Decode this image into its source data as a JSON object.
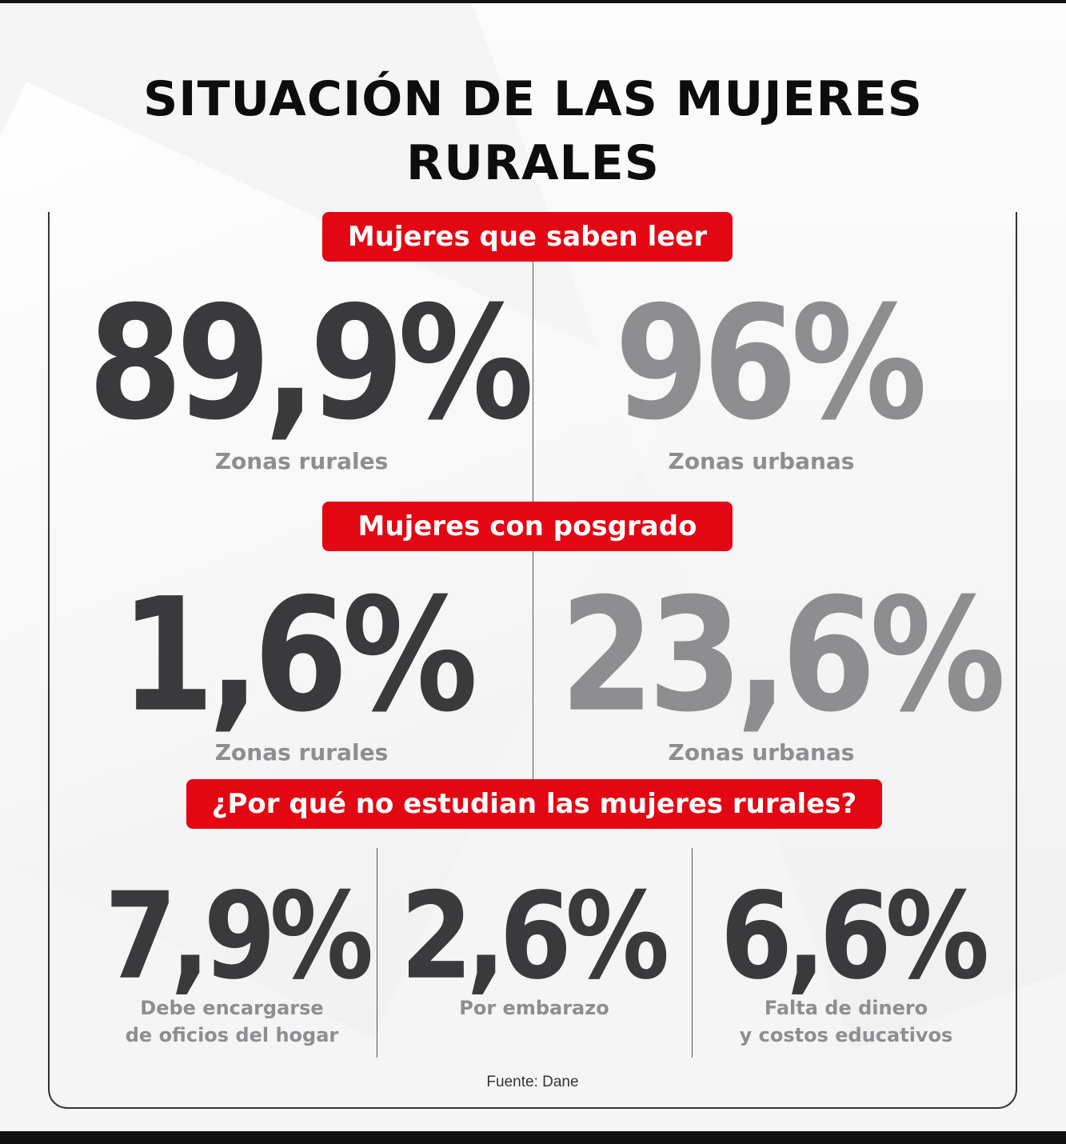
{
  "title": "SITUACIÓN DE LAS MUJERES RURALES",
  "sections": [
    {
      "heading": "Mujeres que saben leer",
      "stats": [
        {
          "value": "89,9%",
          "label": "Zonas rurales"
        },
        {
          "value": "96%",
          "label": "Zonas urbanas"
        }
      ]
    },
    {
      "heading": "Mujeres con posgrado",
      "stats": [
        {
          "value": "1,6%",
          "label": "Zonas rurales"
        },
        {
          "value": "23,6%",
          "label": "Zonas urbanas"
        }
      ]
    },
    {
      "heading": "¿Por qué no estudian las mujeres rurales?",
      "stats": [
        {
          "value": "7,9%",
          "label_line1": "Debe encargarse",
          "label_line2": "de oficios del hogar"
        },
        {
          "value": "2,6%",
          "label_line1": "Por embarazo",
          "label_line2": ""
        },
        {
          "value": "6,6%",
          "label_line1": "Falta de dinero",
          "label_line2": "y costos educativos"
        }
      ]
    }
  ],
  "source": "Fuente: Dane",
  "colors": {
    "accent_red": "#e30613",
    "rural_dark": "#3a3a3c",
    "urban_grey": "#8e8e90"
  }
}
